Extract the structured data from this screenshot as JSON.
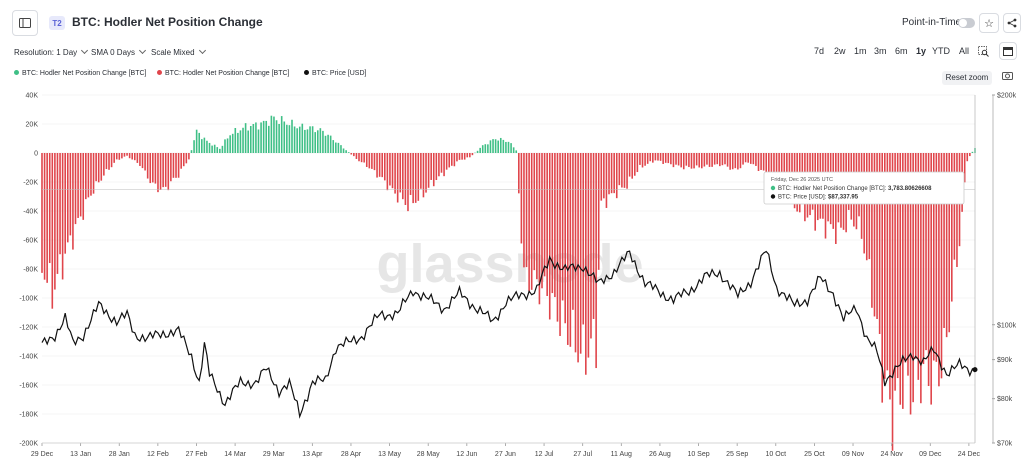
{
  "header": {
    "tier_badge": "T2",
    "title": "BTC: Hodler Net Position Change",
    "point_in_time_label": "Point-in-Time"
  },
  "controls": {
    "resolution": "Resolution: 1 Day",
    "sma": "SMA 0 Days",
    "scale": "Scale Mixed"
  },
  "ranges": [
    "7d",
    "2w",
    "1m",
    "3m",
    "6m",
    "1y",
    "YTD",
    "All"
  ],
  "active_range": "1y",
  "reset_zoom_label": "Reset zoom",
  "watermark": "glassnode",
  "tooltip": {
    "date": "Friday, Dec 26 2025 UTC",
    "rows": [
      {
        "label": "BTC: Hodler Net Position Change [BTC]:",
        "value": "3,783.80626608",
        "color": "#3fbf86"
      },
      {
        "label": "BTC: Price [USD]:",
        "value": "$87,337.95",
        "color": "#111111"
      }
    ]
  },
  "chart_data": {
    "type": "bar",
    "title": "BTC: Hodler Net Position Change",
    "legend": [
      {
        "name": "BTC: Hodler Net Position Change [BTC]",
        "color": "#3fbf86"
      },
      {
        "name": "BTC: Hodler Net Position Change [BTC]",
        "color": "#e0454b"
      },
      {
        "name": "BTC: Price [USD]",
        "color": "#111111"
      }
    ],
    "colors": {
      "positive": "#3fbf86",
      "negative": "#e0454b",
      "price": "#111111"
    },
    "left_axis": {
      "ticks": [
        "40K",
        "20K",
        "0",
        "-20K",
        "-40K",
        "-60K",
        "-80K",
        "-100K",
        "-120K",
        "-140K",
        "-160K",
        "-180K",
        "-200K"
      ],
      "range": [
        -200000,
        40000
      ]
    },
    "right_axis": {
      "scale": "log",
      "ticks": [
        "$200k",
        "$100k",
        "$90k",
        "$80k",
        "$70k"
      ],
      "range": [
        70000,
        200000
      ]
    },
    "x_ticks": [
      "29 Dec",
      "13 Jan",
      "28 Jan",
      "12 Feb",
      "27 Feb",
      "14 Mar",
      "29 Mar",
      "13 Apr",
      "28 Apr",
      "13 May",
      "28 May",
      "12 Jun",
      "27 Jun",
      "12 Jul",
      "27 Jul",
      "11 Aug",
      "26 Aug",
      "10 Sep",
      "25 Sep",
      "10 Oct",
      "25 Oct",
      "09 Nov",
      "24 Nov",
      "09 Dec",
      "24 Dec"
    ],
    "x_range": [
      "2024-12-29",
      "2025-12-26"
    ],
    "hodler_change_anchors": [
      [
        "2024-12-29",
        -78000
      ],
      [
        "2025-01-02",
        -96000
      ],
      [
        "2025-01-07",
        -70000
      ],
      [
        "2025-01-12",
        -48000
      ],
      [
        "2025-01-17",
        -28000
      ],
      [
        "2025-01-22",
        -15000
      ],
      [
        "2025-01-27",
        -5000
      ],
      [
        "2025-01-31",
        -2000
      ],
      [
        "2025-02-05",
        -8000
      ],
      [
        "2025-02-10",
        -22000
      ],
      [
        "2025-02-14",
        -26000
      ],
      [
        "2025-02-20",
        -15000
      ],
      [
        "2025-02-24",
        -4000
      ],
      [
        "2025-02-27",
        15000
      ],
      [
        "2025-03-03",
        8000
      ],
      [
        "2025-03-08",
        3000
      ],
      [
        "2025-03-12",
        13000
      ],
      [
        "2025-03-18",
        18000
      ],
      [
        "2025-03-24",
        20000
      ],
      [
        "2025-03-29",
        24000
      ],
      [
        "2025-04-03",
        21000
      ],
      [
        "2025-04-08",
        18000
      ],
      [
        "2025-04-13",
        17000
      ],
      [
        "2025-04-17",
        15000
      ],
      [
        "2025-04-22",
        8000
      ],
      [
        "2025-04-26",
        2000
      ],
      [
        "2025-04-30",
        -4000
      ],
      [
        "2025-05-05",
        -10000
      ],
      [
        "2025-05-10",
        -18000
      ],
      [
        "2025-05-15",
        -28000
      ],
      [
        "2025-05-20",
        -36000
      ],
      [
        "2025-05-25",
        -30000
      ],
      [
        "2025-05-30",
        -20000
      ],
      [
        "2025-06-04",
        -12000
      ],
      [
        "2025-06-09",
        -5000
      ],
      [
        "2025-06-13",
        -3000
      ],
      [
        "2025-06-18",
        5000
      ],
      [
        "2025-06-23",
        10000
      ],
      [
        "2025-06-28",
        8000
      ],
      [
        "2025-07-01",
        2000
      ],
      [
        "2025-07-04",
        -85000
      ],
      [
        "2025-07-12",
        -95000
      ],
      [
        "2025-07-20",
        -120000
      ],
      [
        "2025-07-27",
        -140000
      ],
      [
        "2025-08-01",
        -128000
      ],
      [
        "2025-08-03",
        -35000
      ],
      [
        "2025-08-08",
        -28000
      ],
      [
        "2025-08-13",
        -22000
      ],
      [
        "2025-08-18",
        -10000
      ],
      [
        "2025-08-24",
        -5000
      ],
      [
        "2025-08-30",
        -8000
      ],
      [
        "2025-09-04",
        -10000
      ],
      [
        "2025-09-09",
        -10000
      ],
      [
        "2025-09-14",
        -9000
      ],
      [
        "2025-09-19",
        -8000
      ],
      [
        "2025-09-24",
        -12000
      ],
      [
        "2025-09-29",
        -6000
      ],
      [
        "2025-10-04",
        -12000
      ],
      [
        "2025-10-09",
        -18000
      ],
      [
        "2025-10-14",
        -30000
      ],
      [
        "2025-10-19",
        -40000
      ],
      [
        "2025-10-24",
        -45000
      ],
      [
        "2025-10-29",
        -50000
      ],
      [
        "2025-11-03",
        -55000
      ],
      [
        "2025-11-08",
        -45000
      ],
      [
        "2025-11-12",
        -55000
      ],
      [
        "2025-11-16",
        -95000
      ],
      [
        "2025-11-20",
        -150000
      ],
      [
        "2025-11-24",
        -180000
      ],
      [
        "2025-11-28",
        -160000
      ],
      [
        "2025-12-02",
        -165000
      ],
      [
        "2025-12-06",
        -150000
      ],
      [
        "2025-12-10",
        -158000
      ],
      [
        "2025-12-14",
        -140000
      ],
      [
        "2025-12-17",
        -100000
      ],
      [
        "2025-12-20",
        -60000
      ],
      [
        "2025-12-23",
        -5000
      ],
      [
        "2025-12-26",
        3784
      ]
    ],
    "price_anchors": [
      [
        "2024-12-29",
        94000
      ],
      [
        "2025-01-03",
        97000
      ],
      [
        "2025-01-07",
        102000
      ],
      [
        "2025-01-10",
        94500
      ],
      [
        "2025-01-14",
        97000
      ],
      [
        "2025-01-20",
        106000
      ],
      [
        "2025-01-27",
        101000
      ],
      [
        "2025-01-31",
        103000
      ],
      [
        "2025-02-03",
        97000
      ],
      [
        "2025-02-08",
        96000
      ],
      [
        "2025-02-14",
        97500
      ],
      [
        "2025-02-20",
        98000
      ],
      [
        "2025-02-25",
        91000
      ],
      [
        "2025-02-28",
        84000
      ],
      [
        "2025-03-02",
        94000
      ],
      [
        "2025-03-04",
        86000
      ],
      [
        "2025-03-10",
        79000
      ],
      [
        "2025-03-16",
        84000
      ],
      [
        "2025-03-22",
        84000
      ],
      [
        "2025-03-26",
        87500
      ],
      [
        "2025-03-31",
        82000
      ],
      [
        "2025-04-04",
        83500
      ],
      [
        "2025-04-08",
        76500
      ],
      [
        "2025-04-13",
        84000
      ],
      [
        "2025-04-18",
        84500
      ],
      [
        "2025-04-22",
        93500
      ],
      [
        "2025-04-28",
        95000
      ],
      [
        "2025-05-02",
        96500
      ],
      [
        "2025-05-09",
        103000
      ],
      [
        "2025-05-16",
        103500
      ],
      [
        "2025-05-22",
        111000
      ],
      [
        "2025-05-28",
        108000
      ],
      [
        "2025-06-03",
        105000
      ],
      [
        "2025-06-09",
        110000
      ],
      [
        "2025-06-15",
        105500
      ],
      [
        "2025-06-22",
        101000
      ],
      [
        "2025-06-27",
        107000
      ],
      [
        "2025-07-03",
        109500
      ],
      [
        "2025-07-09",
        111000
      ],
      [
        "2025-07-14",
        122000
      ],
      [
        "2025-07-20",
        118000
      ],
      [
        "2025-07-27",
        119500
      ],
      [
        "2025-08-02",
        113000
      ],
      [
        "2025-08-08",
        117500
      ],
      [
        "2025-08-14",
        124000
      ],
      [
        "2025-08-20",
        113500
      ],
      [
        "2025-08-26",
        110000
      ],
      [
        "2025-08-31",
        108000
      ],
      [
        "2025-09-06",
        110500
      ],
      [
        "2025-09-12",
        115500
      ],
      [
        "2025-09-18",
        117000
      ],
      [
        "2025-09-25",
        109000
      ],
      [
        "2025-09-30",
        114000
      ],
      [
        "2025-10-06",
        125000
      ],
      [
        "2025-10-10",
        112000
      ],
      [
        "2025-10-17",
        106000
      ],
      [
        "2025-10-22",
        108000
      ],
      [
        "2025-10-27",
        115000
      ],
      [
        "2025-11-01",
        110000
      ],
      [
        "2025-11-05",
        101500
      ],
      [
        "2025-11-10",
        105500
      ],
      [
        "2025-11-14",
        96000
      ],
      [
        "2025-11-18",
        92000
      ],
      [
        "2025-11-21",
        84500
      ],
      [
        "2025-11-25",
        87500
      ],
      [
        "2025-12-02",
        91500
      ],
      [
        "2025-12-06",
        89500
      ],
      [
        "2025-12-10",
        92500
      ],
      [
        "2025-12-15",
        86500
      ],
      [
        "2025-12-20",
        88500
      ],
      [
        "2025-12-23",
        87500
      ],
      [
        "2025-12-26",
        87338
      ]
    ]
  }
}
